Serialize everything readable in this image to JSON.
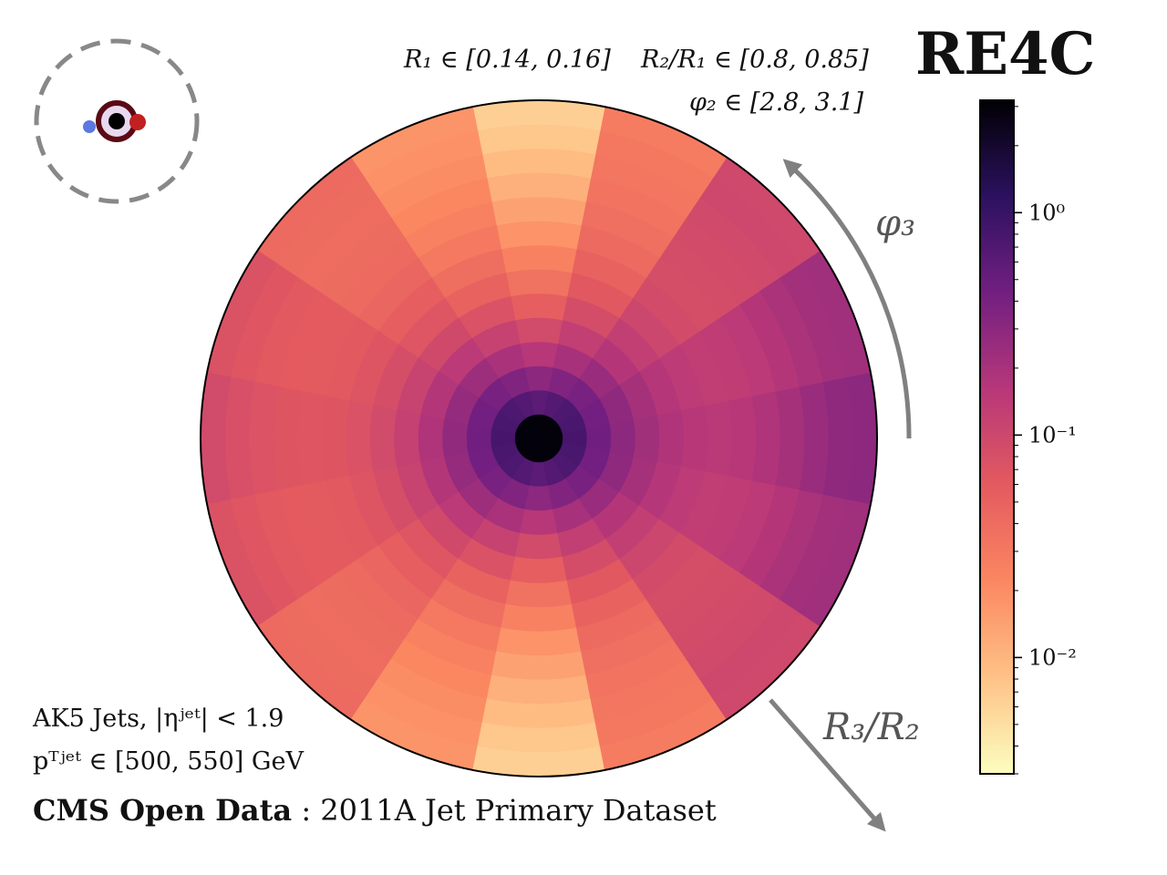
{
  "header": {
    "title": "RE4C",
    "range_r1": "R₁ ∈ [0.14, 0.16]",
    "range_r2": "R₂/R₁ ∈ [0.8, 0.85]",
    "range_phi2": "φ₂ ∈ [2.8, 3.1]"
  },
  "arrows": {
    "phi_label": "φ₃",
    "r_label": "R₃/R₂"
  },
  "footer": {
    "line1": "AK5 Jets, |ηʲᵉᵗ| < 1.9",
    "line2": "pᵀʲᵉᵗ ∈ [500, 550] GeV",
    "dataset_bold": "CMS Open Data",
    "dataset_rest": ": 2011A Jet Primary Dataset"
  },
  "colors": {
    "colormap": [
      "#fcfdbf",
      "#fec287",
      "#fb8761",
      "#e45a5f",
      "#b73779",
      "#721f81",
      "#2c115f",
      "#000004"
    ],
    "arrow": "#808080",
    "dashed_circle": "#888888",
    "ring": "#5a0a14",
    "ring_fill": "#e8d8ef",
    "dot_blue": "#5b79e0",
    "dot_red": "#c02020"
  },
  "chart_data": {
    "type": "heatmap",
    "projection": "polar",
    "radial_axis": "R₃/R₂",
    "angular_axis": "φ₃",
    "colorbar": {
      "scale": "log",
      "range": [
        0.003,
        3.2
      ],
      "ticks": [
        1,
        0.1,
        0.01
      ],
      "tick_labels": [
        "10⁰",
        "10⁻¹",
        "10⁻²"
      ]
    },
    "n_radial_bins": 14,
    "n_angular_bins": 16,
    "angular_profile_note": "Sectors with centers at angle 0 (rightmost) strongest, decreasing toward top/bottom",
    "radial_values_right_sector": [
      3.0,
      0.8,
      0.45,
      0.3,
      0.22,
      0.18,
      0.16,
      0.15,
      0.16,
      0.18,
      0.21,
      0.25,
      0.29,
      0.3
    ],
    "radial_values_left_sector": [
      3.0,
      0.8,
      0.45,
      0.28,
      0.18,
      0.12,
      0.09,
      0.075,
      0.068,
      0.066,
      0.068,
      0.072,
      0.08,
      0.09
    ],
    "radial_values_top_bottom_sector": [
      3.0,
      0.6,
      0.3,
      0.16,
      0.09,
      0.055,
      0.035,
      0.025,
      0.018,
      0.014,
      0.011,
      0.009,
      0.0075,
      0.0065
    ]
  }
}
